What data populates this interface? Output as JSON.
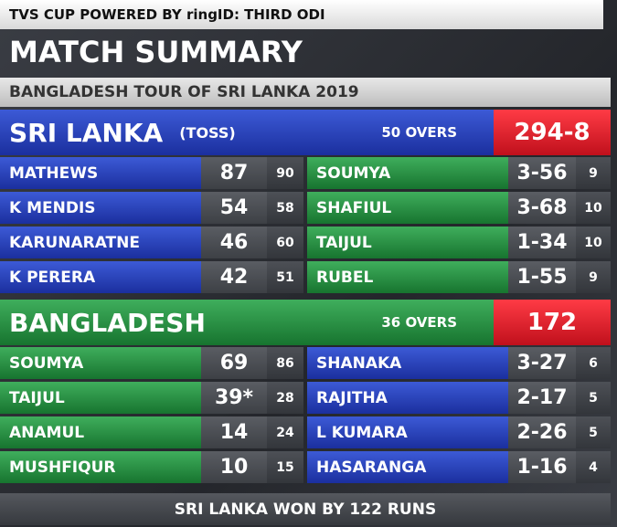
{
  "header": {
    "series": "TVS CUP POWERED BY ringID: THIRD ODI",
    "title": "MATCH SUMMARY",
    "subtitle": "BANGLADESH TOUR OF SRI LANKA 2019"
  },
  "innings": [
    {
      "team": "SRI LANKA",
      "note": "(TOSS)",
      "overs": "50 OVERS",
      "score": "294-8",
      "batting": [
        [
          "MATHEWS",
          87,
          90
        ],
        [
          "K MENDIS",
          54,
          58
        ],
        [
          "KARUNARATNE",
          46,
          60
        ],
        [
          "K PERERA",
          42,
          51
        ]
      ],
      "bowling": [
        [
          "SOUMYA",
          "3-56",
          9
        ],
        [
          "SHAFIUL",
          "3-68",
          10
        ],
        [
          "TAIJUL",
          "1-34",
          10
        ],
        [
          "RUBEL",
          "1-55",
          9
        ]
      ]
    },
    {
      "team": "BANGLADESH",
      "overs": "36 OVERS",
      "score": 172,
      "batting": [
        [
          "SOUMYA",
          69,
          86
        ],
        [
          "TAIJUL",
          "39*",
          28
        ],
        [
          "ANAMUL",
          14,
          24
        ],
        [
          "MUSHFIQUR",
          10,
          15
        ]
      ],
      "bowling": [
        [
          "SHANAKA",
          "3-27",
          6
        ],
        [
          "RAJITHA",
          "2-17",
          5
        ],
        [
          "L KUMARA",
          "2-26",
          5
        ],
        [
          "HASARANGA",
          "1-16",
          4
        ]
      ]
    }
  ],
  "result": "SRI LANKA WON BY 122 RUNS"
}
